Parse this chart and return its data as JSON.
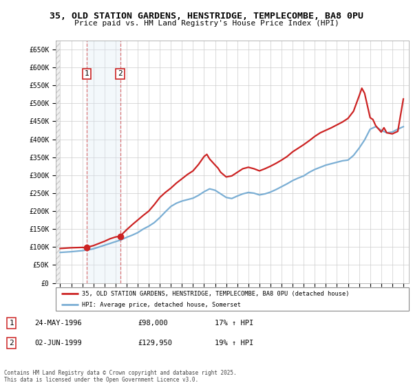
{
  "title1": "35, OLD STATION GARDENS, HENSTRIDGE, TEMPLECOMBE, BA8 0PU",
  "title2": "Price paid vs. HM Land Registry's House Price Index (HPI)",
  "ylabel_ticks": [
    "£0",
    "£50K",
    "£100K",
    "£150K",
    "£200K",
    "£250K",
    "£300K",
    "£350K",
    "£400K",
    "£450K",
    "£500K",
    "£550K",
    "£600K",
    "£650K"
  ],
  "ytick_values": [
    0,
    50000,
    100000,
    150000,
    200000,
    250000,
    300000,
    350000,
    400000,
    450000,
    500000,
    550000,
    600000,
    650000
  ],
  "xlim_start": 1993.6,
  "xlim_end": 2025.5,
  "ylim_top": 675000,
  "ylim_bottom": 0,
  "sale1_x": 1996.39,
  "sale1_price": 98000,
  "sale2_x": 1999.42,
  "sale2_price": 129950,
  "hpi_color": "#7aaed4",
  "price_color": "#cc2222",
  "shade_color": "#d8e8f5",
  "grid_color": "#cccccc",
  "legend_line1": "35, OLD STATION GARDENS, HENSTRIDGE, TEMPLECOMBE, BA8 0PU (detached house)",
  "legend_line2": "HPI: Average price, detached house, Somerset",
  "table_row1_num": "1",
  "table_row1_date": "24-MAY-1996",
  "table_row1_price": "£98,000",
  "table_row1_hpi": "17% ↑ HPI",
  "table_row2_num": "2",
  "table_row2_date": "02-JUN-1999",
  "table_row2_price": "£129,950",
  "table_row2_hpi": "19% ↑ HPI",
  "footer": "Contains HM Land Registry data © Crown copyright and database right 2025.\nThis data is licensed under the Open Government Licence v3.0.",
  "hpi_years": [
    1994,
    1994.5,
    1995,
    1995.5,
    1996,
    1996.5,
    1997,
    1997.5,
    1998,
    1998.5,
    1999,
    1999.5,
    2000,
    2000.5,
    2001,
    2001.5,
    2002,
    2002.5,
    2003,
    2003.5,
    2004,
    2004.5,
    2005,
    2005.5,
    2006,
    2006.5,
    2007,
    2007.5,
    2008,
    2008.5,
    2009,
    2009.5,
    2010,
    2010.5,
    2011,
    2011.5,
    2012,
    2012.5,
    2013,
    2013.5,
    2014,
    2014.5,
    2015,
    2015.5,
    2016,
    2016.5,
    2017,
    2017.5,
    2018,
    2018.5,
    2019,
    2019.5,
    2020,
    2020.5,
    2021,
    2021.5,
    2022,
    2022.5,
    2023,
    2023.5,
    2024,
    2024.5,
    2025
  ],
  "hpi_values": [
    85000,
    86000,
    87000,
    88500,
    90000,
    92000,
    95000,
    100000,
    105000,
    110000,
    115000,
    120000,
    127000,
    133000,
    140000,
    150000,
    158000,
    168000,
    182000,
    198000,
    213000,
    222000,
    228000,
    232000,
    236000,
    244000,
    254000,
    262000,
    258000,
    248000,
    238000,
    235000,
    242000,
    248000,
    252000,
    250000,
    245000,
    248000,
    253000,
    260000,
    268000,
    276000,
    285000,
    292000,
    298000,
    308000,
    316000,
    322000,
    328000,
    332000,
    336000,
    340000,
    342000,
    355000,
    375000,
    398000,
    428000,
    435000,
    425000,
    418000,
    420000,
    428000,
    435000
  ],
  "price_years": [
    1994,
    1994.5,
    1995,
    1995.5,
    1996,
    1996.39,
    1996.5,
    1997,
    1997.5,
    1998,
    1998.5,
    1999,
    1999.42,
    1999.5,
    2000,
    2000.5,
    2001,
    2001.5,
    2002,
    2002.5,
    2003,
    2003.5,
    2004,
    2004.5,
    2005,
    2005.5,
    2006,
    2006.5,
    2007,
    2007.25,
    2007.5,
    2008,
    2008.25,
    2008.5,
    2009,
    2009.5,
    2010,
    2010.5,
    2011,
    2011.5,
    2012,
    2012.5,
    2013,
    2013.5,
    2014,
    2014.5,
    2015,
    2015.5,
    2016,
    2016.5,
    2017,
    2017.5,
    2018,
    2018.5,
    2019,
    2019.5,
    2020,
    2020.5,
    2021,
    2021.25,
    2021.5,
    2022,
    2022.25,
    2022.5,
    2023,
    2023.25,
    2023.5,
    2024,
    2024.5,
    2025
  ],
  "price_values": [
    96000,
    97000,
    98000,
    98500,
    99000,
    98000,
    100000,
    104000,
    110000,
    116000,
    123000,
    128000,
    129950,
    133000,
    148000,
    162000,
    175000,
    188000,
    200000,
    218000,
    238000,
    252000,
    264000,
    278000,
    290000,
    302000,
    312000,
    330000,
    352000,
    358000,
    345000,
    328000,
    320000,
    308000,
    295000,
    298000,
    308000,
    318000,
    322000,
    318000,
    312000,
    318000,
    325000,
    333000,
    342000,
    352000,
    365000,
    375000,
    385000,
    396000,
    408000,
    418000,
    425000,
    432000,
    440000,
    448000,
    458000,
    478000,
    520000,
    542000,
    528000,
    460000,
    455000,
    438000,
    420000,
    432000,
    418000,
    415000,
    422000,
    512000
  ]
}
